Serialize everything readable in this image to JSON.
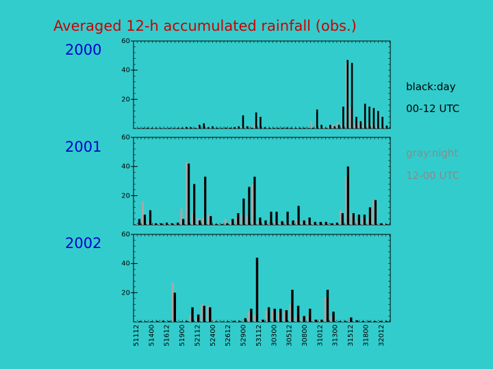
{
  "title": "Averaged 12-h accumulated rainfall (obs.)",
  "legend": {
    "day_label": "black:day",
    "day_time": "00-12 UTC",
    "night_label": "gray:night",
    "night_time": "12-00 UTC",
    "day_color": "#000000",
    "night_color": "#a8a8a8"
  },
  "chart_data": [
    {
      "type": "bar",
      "title": "2000",
      "ylim": [
        0,
        60
      ],
      "yticks": [
        20,
        40,
        60
      ],
      "series": [
        {
          "name": "black:day",
          "values": [
            0.3,
            0.4,
            0.5,
            0.3,
            0.3,
            0.3,
            0.2,
            0.4,
            0.3,
            0.4,
            0.5,
            1,
            0.8,
            0.4,
            2.5,
            3.5,
            0.8,
            1.5,
            0.5,
            0.3,
            0.6,
            0.5,
            0.8,
            1.5,
            9,
            1.5,
            0.5,
            11,
            8,
            0.8,
            0.5,
            0.4,
            0.5,
            0.5,
            0.6,
            0.5,
            0.3,
            0.5,
            0.5,
            0.3,
            0.5,
            13,
            2.5,
            0.5,
            2.5,
            1.5,
            2.5,
            15,
            47,
            45,
            8,
            5,
            17,
            15,
            14,
            12,
            8,
            2
          ]
        },
        {
          "name": "gray:night",
          "values": [
            0.2,
            0.3,
            0.2,
            0.3,
            0.2,
            0.2,
            0.2,
            0.3,
            0.2,
            0.3,
            0.3,
            0.5,
            0.4,
            0.3,
            1.5,
            0.5,
            0.3,
            0.4,
            0.3,
            0.2,
            0.3,
            0.4,
            0.5,
            0.5,
            1.5,
            0.5,
            0.3,
            3.5,
            0.5,
            0.3,
            0.3,
            0.3,
            0.3,
            0.3,
            0.3,
            0.3,
            0.2,
            0.3,
            0.3,
            0.2,
            5,
            1,
            0.5,
            0.5,
            1,
            3,
            5,
            3,
            45,
            15,
            3,
            4,
            5,
            4,
            3,
            2,
            1,
            0.5
          ]
        }
      ]
    },
    {
      "type": "bar",
      "title": "2001",
      "ylim": [
        0,
        60
      ],
      "yticks": [
        20,
        40,
        60
      ],
      "series": [
        {
          "name": "black:day",
          "values": [
            4,
            7,
            10,
            1,
            1,
            1.5,
            1,
            1.5,
            4,
            42,
            28,
            3,
            33,
            6,
            0.5,
            0.5,
            1,
            4,
            8,
            18,
            26,
            33,
            5,
            3,
            9,
            9,
            2.5,
            9,
            3,
            13,
            3,
            5,
            2,
            2,
            2,
            1,
            1.5,
            8,
            40,
            8,
            7,
            7,
            12,
            17,
            1,
            0.5
          ]
        },
        {
          "name": "gray:night",
          "values": [
            0.5,
            16,
            3,
            0.5,
            0.5,
            1,
            0.5,
            1,
            11,
            43,
            8,
            5,
            5,
            7,
            0.5,
            0.5,
            4,
            2.5,
            5,
            7,
            6,
            28,
            3,
            1,
            1,
            2,
            1.5,
            1.5,
            1,
            4,
            2,
            3,
            1,
            1,
            1,
            0.5,
            1,
            10,
            33,
            8,
            3,
            5,
            5,
            17,
            1,
            0.5
          ]
        }
      ]
    },
    {
      "type": "bar",
      "title": "2002",
      "ylim": [
        0,
        60
      ],
      "yticks": [
        20,
        40,
        60
      ],
      "series": [
        {
          "name": "black:day",
          "values": [
            0.5,
            0.3,
            0.4,
            0.6,
            0.7,
            0.6,
            20,
            0.3,
            0.6,
            10,
            5,
            11,
            10,
            0.3,
            0.3,
            0.4,
            0.6,
            0.6,
            2.5,
            9,
            44,
            1.5,
            10,
            9,
            9,
            8,
            22,
            11,
            4,
            9,
            1.5,
            1.5,
            22,
            7,
            0.5,
            0.6,
            3,
            1,
            0.5,
            0.6,
            0.5,
            0.6,
            0.6
          ]
        },
        {
          "name": "gray:night",
          "values": [
            0.3,
            0.2,
            0.3,
            0.3,
            0.5,
            0.4,
            27,
            0.3,
            0.5,
            5,
            3,
            12,
            11,
            1,
            0.2,
            0.3,
            0.4,
            0.5,
            1,
            7,
            5,
            1,
            8,
            8,
            7,
            7,
            12,
            4,
            3,
            4,
            1,
            1,
            17,
            4,
            0.3,
            0.4,
            1,
            0.6,
            0.3,
            0.5,
            0.3,
            0.5,
            0.5
          ]
        }
      ]
    }
  ],
  "x_ticks": [
    "51112",
    "51400",
    "51612",
    "51900",
    "52112",
    "52400",
    "52612",
    "52900",
    "53112",
    "30300",
    "30512",
    "30800",
    "31012",
    "31300",
    "31512",
    "31800",
    "32012"
  ]
}
